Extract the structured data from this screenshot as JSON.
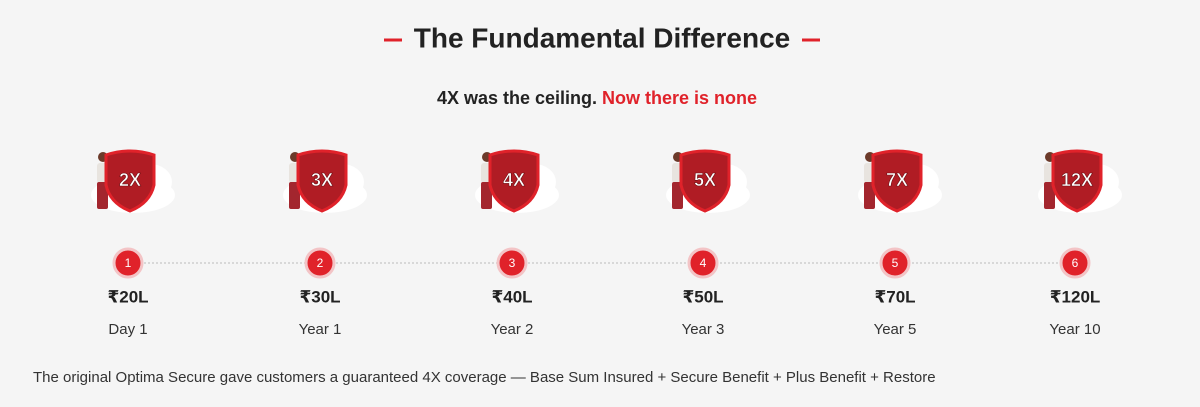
{
  "header": {
    "title": "The Fundamental Difference",
    "subtitle_lead": "4X was the ceiling.",
    "subtitle_highlight": "Now there is none"
  },
  "steps": [
    {
      "multiplier": "2X",
      "number": "1",
      "amount": "₹20L",
      "period": "Day 1"
    },
    {
      "multiplier": "3X",
      "number": "2",
      "amount": "₹30L",
      "period": "Year 1"
    },
    {
      "multiplier": "4X",
      "number": "3",
      "amount": "₹40L",
      "period": "Year 2"
    },
    {
      "multiplier": "5X",
      "number": "4",
      "amount": "₹50L",
      "period": "Year 3"
    },
    {
      "multiplier": "7X",
      "number": "5",
      "amount": "₹70L",
      "period": "Year 5"
    },
    {
      "multiplier": "12X",
      "number": "6",
      "amount": "₹120L",
      "period": "Year 10"
    }
  ],
  "footer": {
    "text": "The original Optima Secure gave customers a guaranteed 4X coverage — Base Sum Insured + Secure Benefit + Plus Benefit + Restore"
  }
}
